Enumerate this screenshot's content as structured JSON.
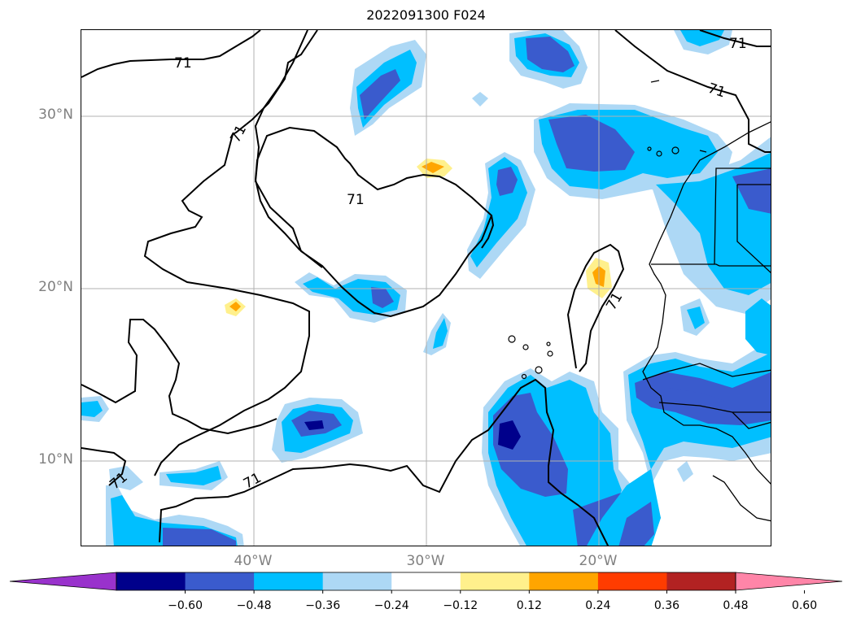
{
  "title": "2022091300 F024",
  "latitude_labels": [
    "30°N",
    "20°N",
    "10°N"
  ],
  "longitude_labels": [
    "40°W",
    "30°W",
    "20°W"
  ],
  "contour_label": "71",
  "colorbar": {
    "extend": "both",
    "ticks": [
      "−0.60",
      "−0.48",
      "−0.36",
      "−0.24",
      "−0.12",
      "0.12",
      "0.24",
      "0.36",
      "0.48",
      "0.60"
    ],
    "colors": [
      "#9932cc",
      "#00008b",
      "#3a5bcd",
      "#00bfff",
      "#add8f5",
      "#ffffff",
      "#fff08c",
      "#ffa500",
      "#ff3c00",
      "#b22222",
      "#ff85a8"
    ]
  },
  "colors": {
    "dark_navy": "#00008b",
    "mid_blue": "#3a5bcd",
    "sky_blue": "#00bfff",
    "light_blue": "#add8f5",
    "yellow": "#fff08c",
    "orange": "#ffa500",
    "gridline": "#b0b0b0",
    "coastline": "#000000",
    "label_gray": "#808080"
  }
}
